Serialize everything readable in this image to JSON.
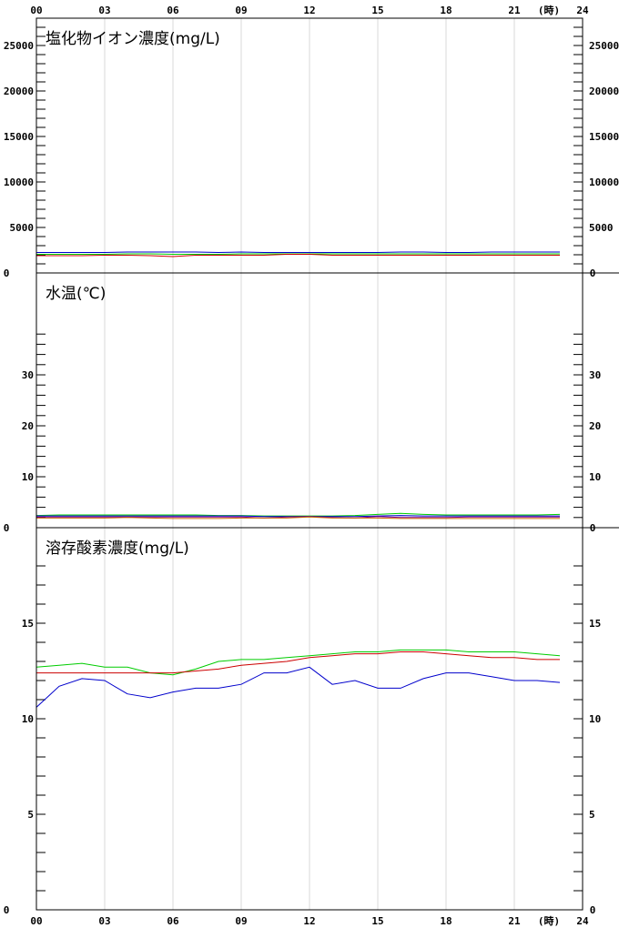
{
  "x_axis": {
    "tick_labels": [
      "00",
      "03",
      "06",
      "09",
      "12",
      "15",
      "18",
      "21",
      "24"
    ],
    "unit_label": "(時)",
    "range": [
      0,
      24
    ]
  },
  "chart_data": [
    {
      "type": "line",
      "title": "塩化物イオン濃度(mg/L)",
      "ylim": [
        0,
        28000
      ],
      "y_tick_labels": [
        "0",
        "5000",
        "10000",
        "15000",
        "20000",
        "25000"
      ],
      "y_tick_values": [
        0,
        5000,
        10000,
        15000,
        20000,
        25000
      ],
      "minor_step": 1000,
      "grid": true,
      "x": [
        0,
        1,
        2,
        3,
        4,
        5,
        6,
        7,
        8,
        9,
        10,
        11,
        12,
        13,
        14,
        15,
        16,
        17,
        18,
        19,
        20,
        21,
        22,
        23
      ],
      "series": [
        {
          "color": "#0000cc",
          "values": [
            2250,
            2250,
            2250,
            2250,
            2300,
            2300,
            2300,
            2300,
            2250,
            2300,
            2250,
            2250,
            2250,
            2250,
            2250,
            2250,
            2300,
            2300,
            2250,
            2250,
            2300,
            2300,
            2300,
            2300
          ]
        },
        {
          "color": "#00cc00",
          "values": [
            2050,
            2050,
            2050,
            2050,
            2100,
            2100,
            2050,
            2050,
            2050,
            2100,
            2100,
            2100,
            2100,
            2100,
            2100,
            2100,
            2100,
            2100,
            2100,
            2100,
            2100,
            2100,
            2100,
            2100
          ]
        },
        {
          "color": "#cc0000",
          "values": [
            1900,
            1900,
            1900,
            1950,
            1950,
            1900,
            1800,
            1950,
            1950,
            1950,
            1950,
            2050,
            2050,
            1950,
            1950,
            1950,
            1950,
            1950,
            1950,
            1950,
            1950,
            1950,
            1950,
            1950
          ]
        }
      ]
    },
    {
      "type": "line",
      "title": "水温(℃)",
      "ylim": [
        0,
        50
      ],
      "y_tick_labels": [
        "0",
        "10",
        "20",
        "30"
      ],
      "y_tick_values": [
        0,
        10,
        20,
        30
      ],
      "minor_step": 2,
      "minor_max": 38,
      "grid": true,
      "x": [
        0,
        1,
        2,
        3,
        4,
        5,
        6,
        7,
        8,
        9,
        10,
        11,
        12,
        13,
        14,
        15,
        16,
        17,
        18,
        19,
        20,
        21,
        22,
        23
      ],
      "series": [
        {
          "color": "#00cc00",
          "values": [
            2.4,
            2.5,
            2.5,
            2.5,
            2.5,
            2.5,
            2.5,
            2.5,
            2.4,
            2.4,
            2.3,
            2.3,
            2.3,
            2.3,
            2.4,
            2.6,
            2.8,
            2.6,
            2.5,
            2.5,
            2.5,
            2.5,
            2.5,
            2.6
          ]
        },
        {
          "color": "#0000cc",
          "values": [
            2.3,
            2.3,
            2.3,
            2.3,
            2.3,
            2.3,
            2.3,
            2.3,
            2.3,
            2.3,
            2.2,
            2.2,
            2.2,
            2.2,
            2.2,
            2.3,
            2.4,
            2.3,
            2.3,
            2.3,
            2.3,
            2.3,
            2.3,
            2.3
          ]
        },
        {
          "color": "#800080",
          "values": [
            2.1,
            2.1,
            2.1,
            2.1,
            2.1,
            2.1,
            2.1,
            2.1,
            2.1,
            2.1,
            1.9,
            2.1,
            2.2,
            2.0,
            1.9,
            2.2,
            2.0,
            2.0,
            2.0,
            2.1,
            2.1,
            2.1,
            2.1,
            2.1
          ]
        },
        {
          "color": "#cc6600",
          "values": [
            1.9,
            1.9,
            1.9,
            1.9,
            2.0,
            1.9,
            1.8,
            1.8,
            1.8,
            1.9,
            1.9,
            1.9,
            2.1,
            1.9,
            1.9,
            1.9,
            1.8,
            1.8,
            1.8,
            1.8,
            1.8,
            1.8,
            1.8,
            1.8
          ]
        }
      ]
    },
    {
      "type": "line",
      "title": "溶存酸素濃度(mg/L)",
      "ylim": [
        0,
        20
      ],
      "y_tick_labels": [
        "0",
        "5",
        "10",
        "15"
      ],
      "y_tick_values": [
        0,
        5,
        10,
        15
      ],
      "minor_step": 1,
      "minor_max": 18,
      "grid": true,
      "x": [
        0,
        1,
        2,
        3,
        4,
        5,
        6,
        7,
        8,
        9,
        10,
        11,
        12,
        13,
        14,
        15,
        16,
        17,
        18,
        19,
        20,
        21,
        22,
        23
      ],
      "series": [
        {
          "color": "#00cc00",
          "values": [
            12.7,
            12.8,
            12.9,
            12.7,
            12.7,
            12.4,
            12.3,
            12.6,
            13.0,
            13.1,
            13.1,
            13.2,
            13.3,
            13.4,
            13.5,
            13.5,
            13.6,
            13.6,
            13.6,
            13.5,
            13.5,
            13.5,
            13.4,
            13.3
          ]
        },
        {
          "color": "#cc0000",
          "values": [
            12.4,
            12.4,
            12.4,
            12.4,
            12.4,
            12.4,
            12.4,
            12.5,
            12.6,
            12.8,
            12.9,
            13.0,
            13.2,
            13.3,
            13.4,
            13.4,
            13.5,
            13.5,
            13.4,
            13.3,
            13.2,
            13.2,
            13.1,
            13.1
          ]
        },
        {
          "color": "#0000cc",
          "values": [
            10.6,
            11.7,
            12.1,
            12.0,
            11.3,
            11.1,
            11.4,
            11.6,
            11.6,
            11.8,
            12.4,
            12.4,
            12.7,
            11.8,
            12.0,
            11.6,
            11.6,
            12.1,
            12.4,
            12.4,
            12.2,
            12.0,
            12.0,
            11.9
          ]
        }
      ]
    }
  ]
}
